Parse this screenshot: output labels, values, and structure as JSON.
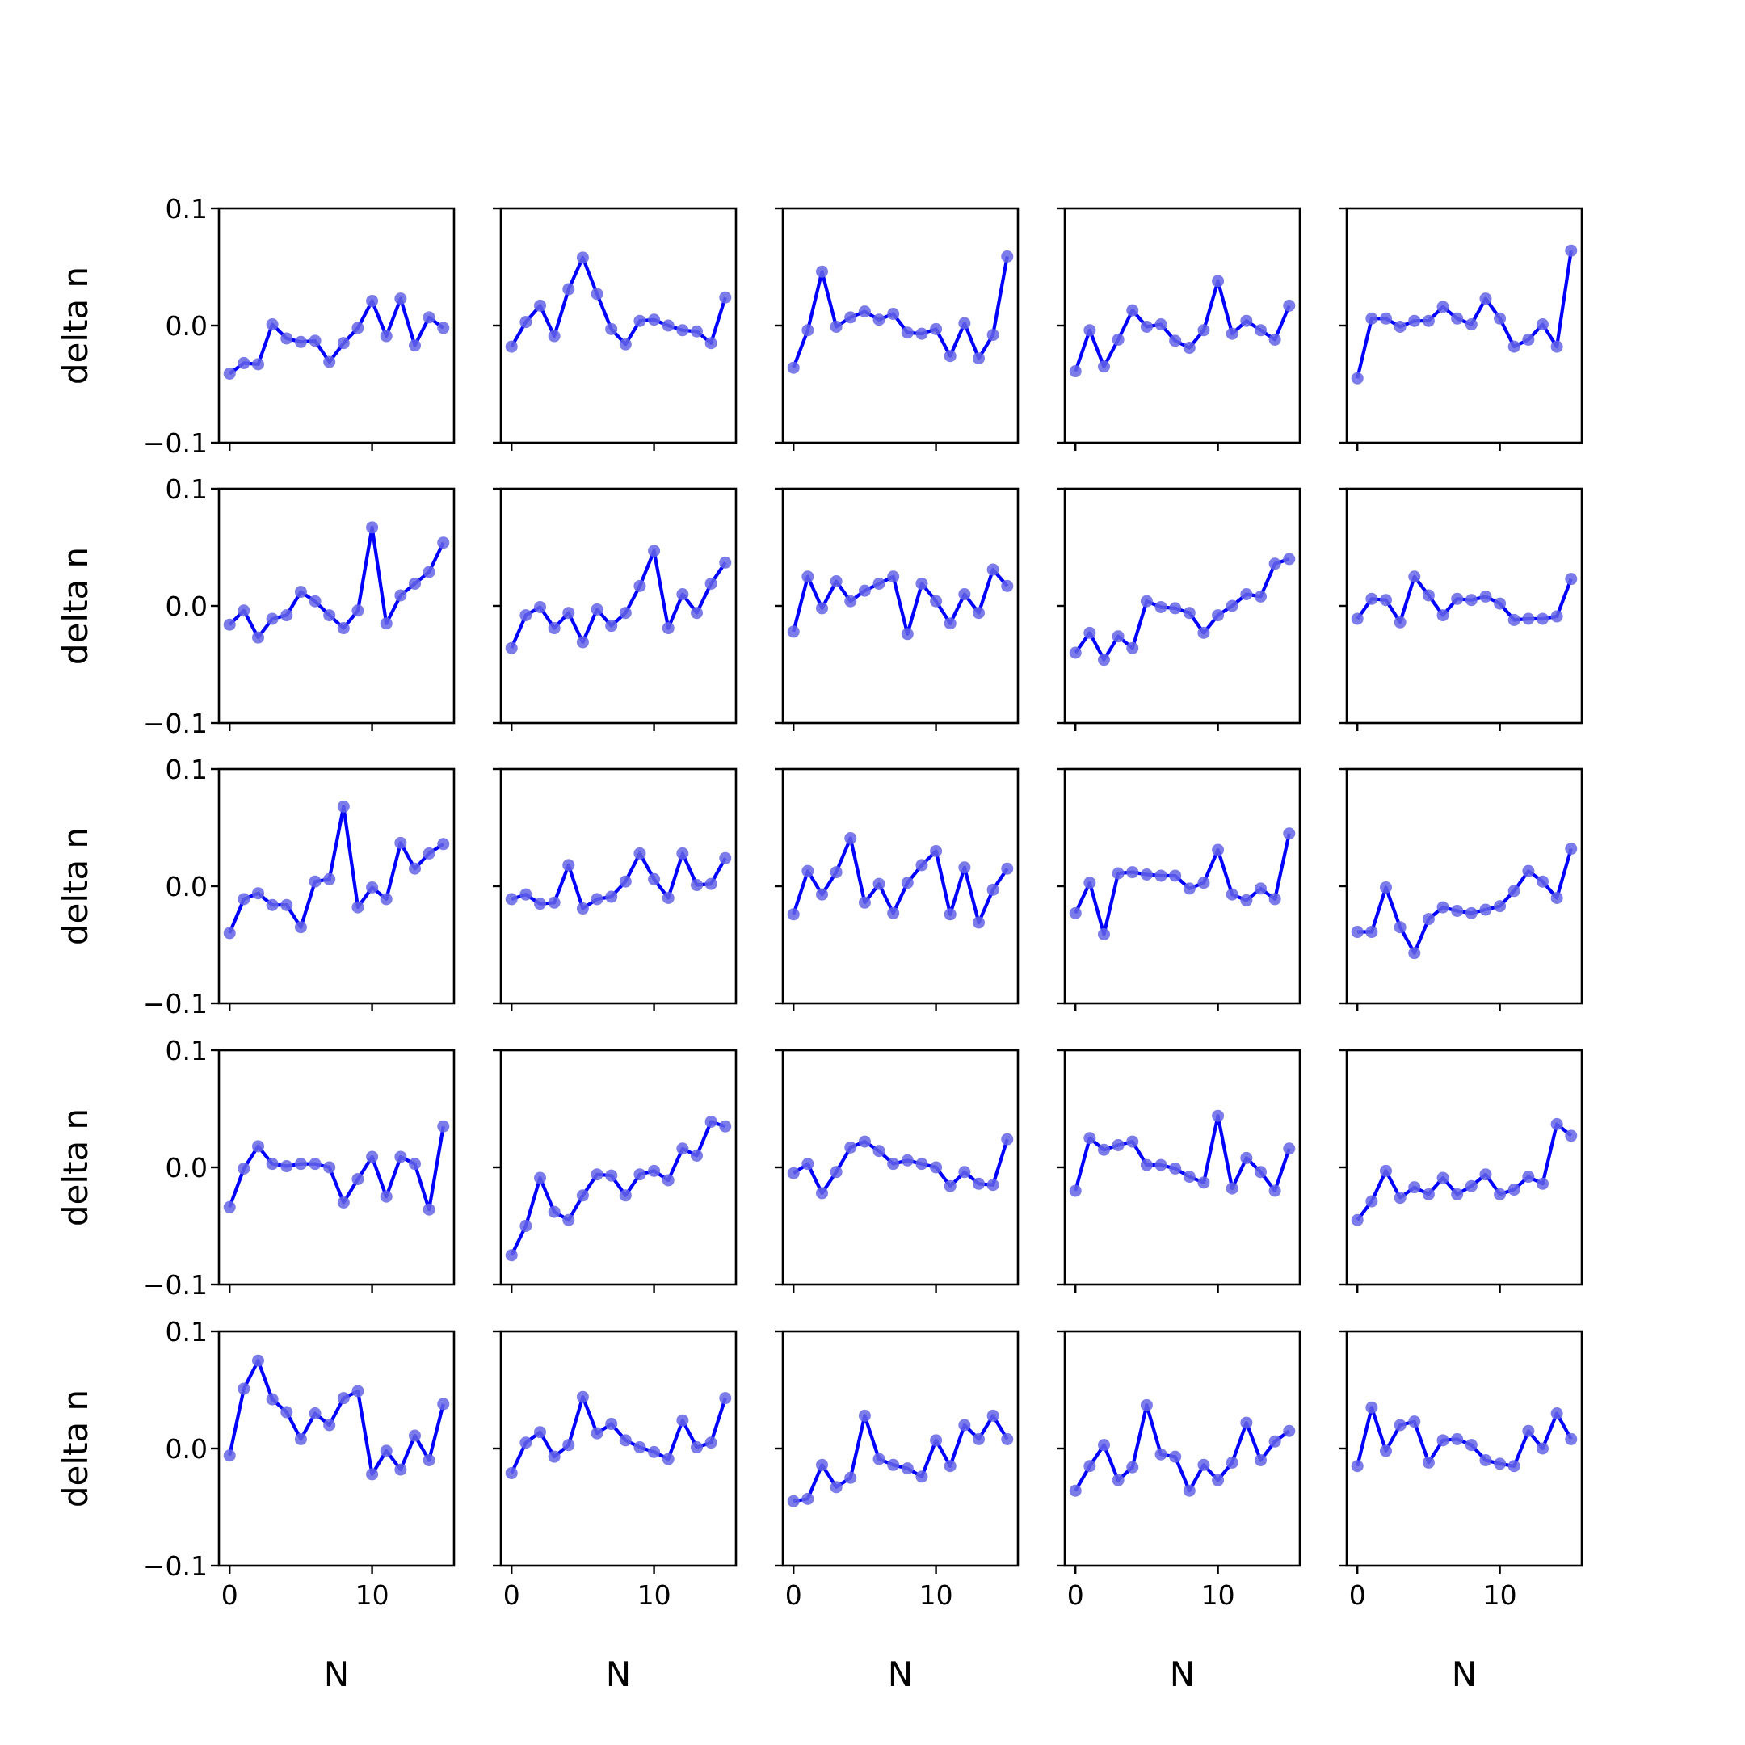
{
  "chart_data": {
    "type": "line",
    "layout": "5x5 small multiples, shared x and y axes",
    "xlabel": "N",
    "ylabel": "delta n",
    "ylim": [
      -0.1,
      0.1
    ],
    "yticks": [
      -0.1,
      0.0,
      0.1
    ],
    "ytick_labels": [
      "−0.1",
      "0.0",
      "0.1"
    ],
    "xticks": [
      0,
      10
    ],
    "xtick_labels": [
      "0",
      "10"
    ],
    "xlim": [
      -0.75,
      15.75
    ],
    "x": [
      0,
      1,
      2,
      3,
      4,
      5,
      6,
      7,
      8,
      9,
      10,
      11,
      12,
      13,
      14,
      15
    ],
    "colors": {
      "line": "#0000ff",
      "marker": "#6464e6",
      "axes": "#000000"
    },
    "markers": true,
    "grid": false,
    "panels": [
      {
        "values": [
          -0.041,
          -0.032,
          -0.033,
          0.001,
          -0.011,
          -0.014,
          -0.013,
          -0.031,
          -0.015,
          -0.002,
          0.021,
          -0.009,
          0.023,
          -0.017,
          0.007,
          -0.002
        ]
      },
      {
        "values": [
          -0.018,
          0.003,
          0.017,
          -0.009,
          0.031,
          0.058,
          0.027,
          -0.003,
          -0.016,
          0.004,
          0.005,
          0.0,
          -0.004,
          -0.005,
          -0.015,
          0.024
        ]
      },
      {
        "values": [
          -0.036,
          -0.004,
          0.046,
          -0.001,
          0.007,
          0.012,
          0.005,
          0.01,
          -0.006,
          -0.007,
          -0.003,
          -0.026,
          0.002,
          -0.028,
          -0.008,
          0.059
        ]
      },
      {
        "values": [
          -0.039,
          -0.004,
          -0.035,
          -0.012,
          0.013,
          -0.001,
          0.001,
          -0.013,
          -0.019,
          -0.004,
          0.038,
          -0.007,
          0.004,
          -0.004,
          -0.012,
          0.017
        ]
      },
      {
        "values": [
          -0.045,
          0.006,
          0.006,
          -0.001,
          0.004,
          0.004,
          0.016,
          0.006,
          0.001,
          0.023,
          0.006,
          -0.018,
          -0.012,
          0.001,
          -0.018,
          0.064
        ]
      },
      {
        "values": [
          -0.016,
          -0.004,
          -0.027,
          -0.011,
          -0.008,
          0.012,
          0.004,
          -0.008,
          -0.019,
          -0.004,
          0.067,
          -0.015,
          0.009,
          0.019,
          0.029,
          0.054
        ]
      },
      {
        "values": [
          -0.036,
          -0.008,
          -0.001,
          -0.019,
          -0.006,
          -0.031,
          -0.003,
          -0.017,
          -0.006,
          0.017,
          0.047,
          -0.019,
          0.01,
          -0.006,
          0.019,
          0.037
        ]
      },
      {
        "values": [
          -0.022,
          0.025,
          -0.002,
          0.021,
          0.004,
          0.013,
          0.019,
          0.025,
          -0.024,
          0.019,
          0.004,
          -0.015,
          0.01,
          -0.006,
          0.031,
          0.017
        ]
      },
      {
        "values": [
          -0.04,
          -0.023,
          -0.046,
          -0.026,
          -0.036,
          0.004,
          -0.001,
          -0.002,
          -0.006,
          -0.023,
          -0.008,
          0.0,
          0.01,
          0.008,
          0.036,
          0.04
        ]
      },
      {
        "values": [
          -0.011,
          0.006,
          0.005,
          -0.014,
          0.025,
          0.009,
          -0.008,
          0.006,
          0.005,
          0.008,
          0.002,
          -0.012,
          -0.011,
          -0.011,
          -0.009,
          0.023
        ]
      },
      {
        "values": [
          -0.04,
          -0.011,
          -0.006,
          -0.016,
          -0.016,
          -0.035,
          0.004,
          0.006,
          0.068,
          -0.018,
          -0.001,
          -0.011,
          0.037,
          0.015,
          0.028,
          0.036
        ]
      },
      {
        "values": [
          -0.011,
          -0.007,
          -0.015,
          -0.014,
          0.018,
          -0.019,
          -0.011,
          -0.009,
          0.004,
          0.028,
          0.006,
          -0.01,
          0.028,
          0.001,
          0.002,
          0.024
        ]
      },
      {
        "values": [
          -0.024,
          0.013,
          -0.007,
          0.012,
          0.041,
          -0.014,
          0.002,
          -0.023,
          0.003,
          0.018,
          0.03,
          -0.024,
          0.016,
          -0.031,
          -0.003,
          0.015
        ]
      },
      {
        "values": [
          -0.023,
          0.003,
          -0.041,
          0.011,
          0.012,
          0.01,
          0.009,
          0.009,
          -0.002,
          0.003,
          0.031,
          -0.007,
          -0.012,
          -0.002,
          -0.011,
          0.045
        ]
      },
      {
        "values": [
          -0.039,
          -0.039,
          -0.001,
          -0.035,
          -0.057,
          -0.028,
          -0.018,
          -0.021,
          -0.023,
          -0.02,
          -0.017,
          -0.004,
          0.013,
          0.004,
          -0.01,
          0.032
        ]
      },
      {
        "values": [
          -0.034,
          -0.001,
          0.018,
          0.003,
          0.001,
          0.003,
          0.003,
          0.0,
          -0.03,
          -0.01,
          0.009,
          -0.025,
          0.009,
          0.003,
          -0.036,
          0.035
        ]
      },
      {
        "values": [
          -0.075,
          -0.05,
          -0.009,
          -0.038,
          -0.045,
          -0.024,
          -0.006,
          -0.007,
          -0.024,
          -0.006,
          -0.003,
          -0.011,
          0.016,
          0.01,
          0.039,
          0.035
        ]
      },
      {
        "values": [
          -0.005,
          0.003,
          -0.022,
          -0.004,
          0.017,
          0.022,
          0.014,
          0.003,
          0.006,
          0.003,
          0.0,
          -0.016,
          -0.004,
          -0.014,
          -0.015,
          0.024
        ]
      },
      {
        "values": [
          -0.02,
          0.025,
          0.015,
          0.019,
          0.022,
          0.002,
          0.002,
          -0.001,
          -0.008,
          -0.013,
          0.044,
          -0.018,
          0.008,
          -0.004,
          -0.02,
          0.016
        ]
      },
      {
        "values": [
          -0.045,
          -0.029,
          -0.003,
          -0.026,
          -0.017,
          -0.023,
          -0.009,
          -0.023,
          -0.016,
          -0.006,
          -0.023,
          -0.019,
          -0.008,
          -0.014,
          0.037,
          0.027
        ]
      },
      {
        "values": [
          -0.006,
          0.051,
          0.075,
          0.042,
          0.031,
          0.008,
          0.03,
          0.02,
          0.043,
          0.049,
          -0.022,
          -0.002,
          -0.018,
          0.011,
          -0.01,
          0.038
        ]
      },
      {
        "values": [
          -0.021,
          0.005,
          0.014,
          -0.007,
          0.003,
          0.044,
          0.013,
          0.021,
          0.007,
          0.001,
          -0.003,
          -0.009,
          0.024,
          0.001,
          0.005,
          0.043
        ]
      },
      {
        "values": [
          -0.045,
          -0.043,
          -0.014,
          -0.033,
          -0.025,
          0.028,
          -0.009,
          -0.014,
          -0.017,
          -0.024,
          0.007,
          -0.015,
          0.02,
          0.008,
          0.028,
          0.008
        ]
      },
      {
        "values": [
          -0.036,
          -0.015,
          0.003,
          -0.027,
          -0.016,
          0.037,
          -0.005,
          -0.007,
          -0.036,
          -0.014,
          -0.027,
          -0.012,
          0.022,
          -0.01,
          0.006,
          0.015
        ]
      },
      {
        "values": [
          -0.015,
          0.035,
          -0.002,
          0.02,
          0.023,
          -0.012,
          0.007,
          0.008,
          0.003,
          -0.01,
          -0.013,
          -0.015,
          0.015,
          0.0,
          0.03,
          0.008
        ]
      }
    ]
  }
}
